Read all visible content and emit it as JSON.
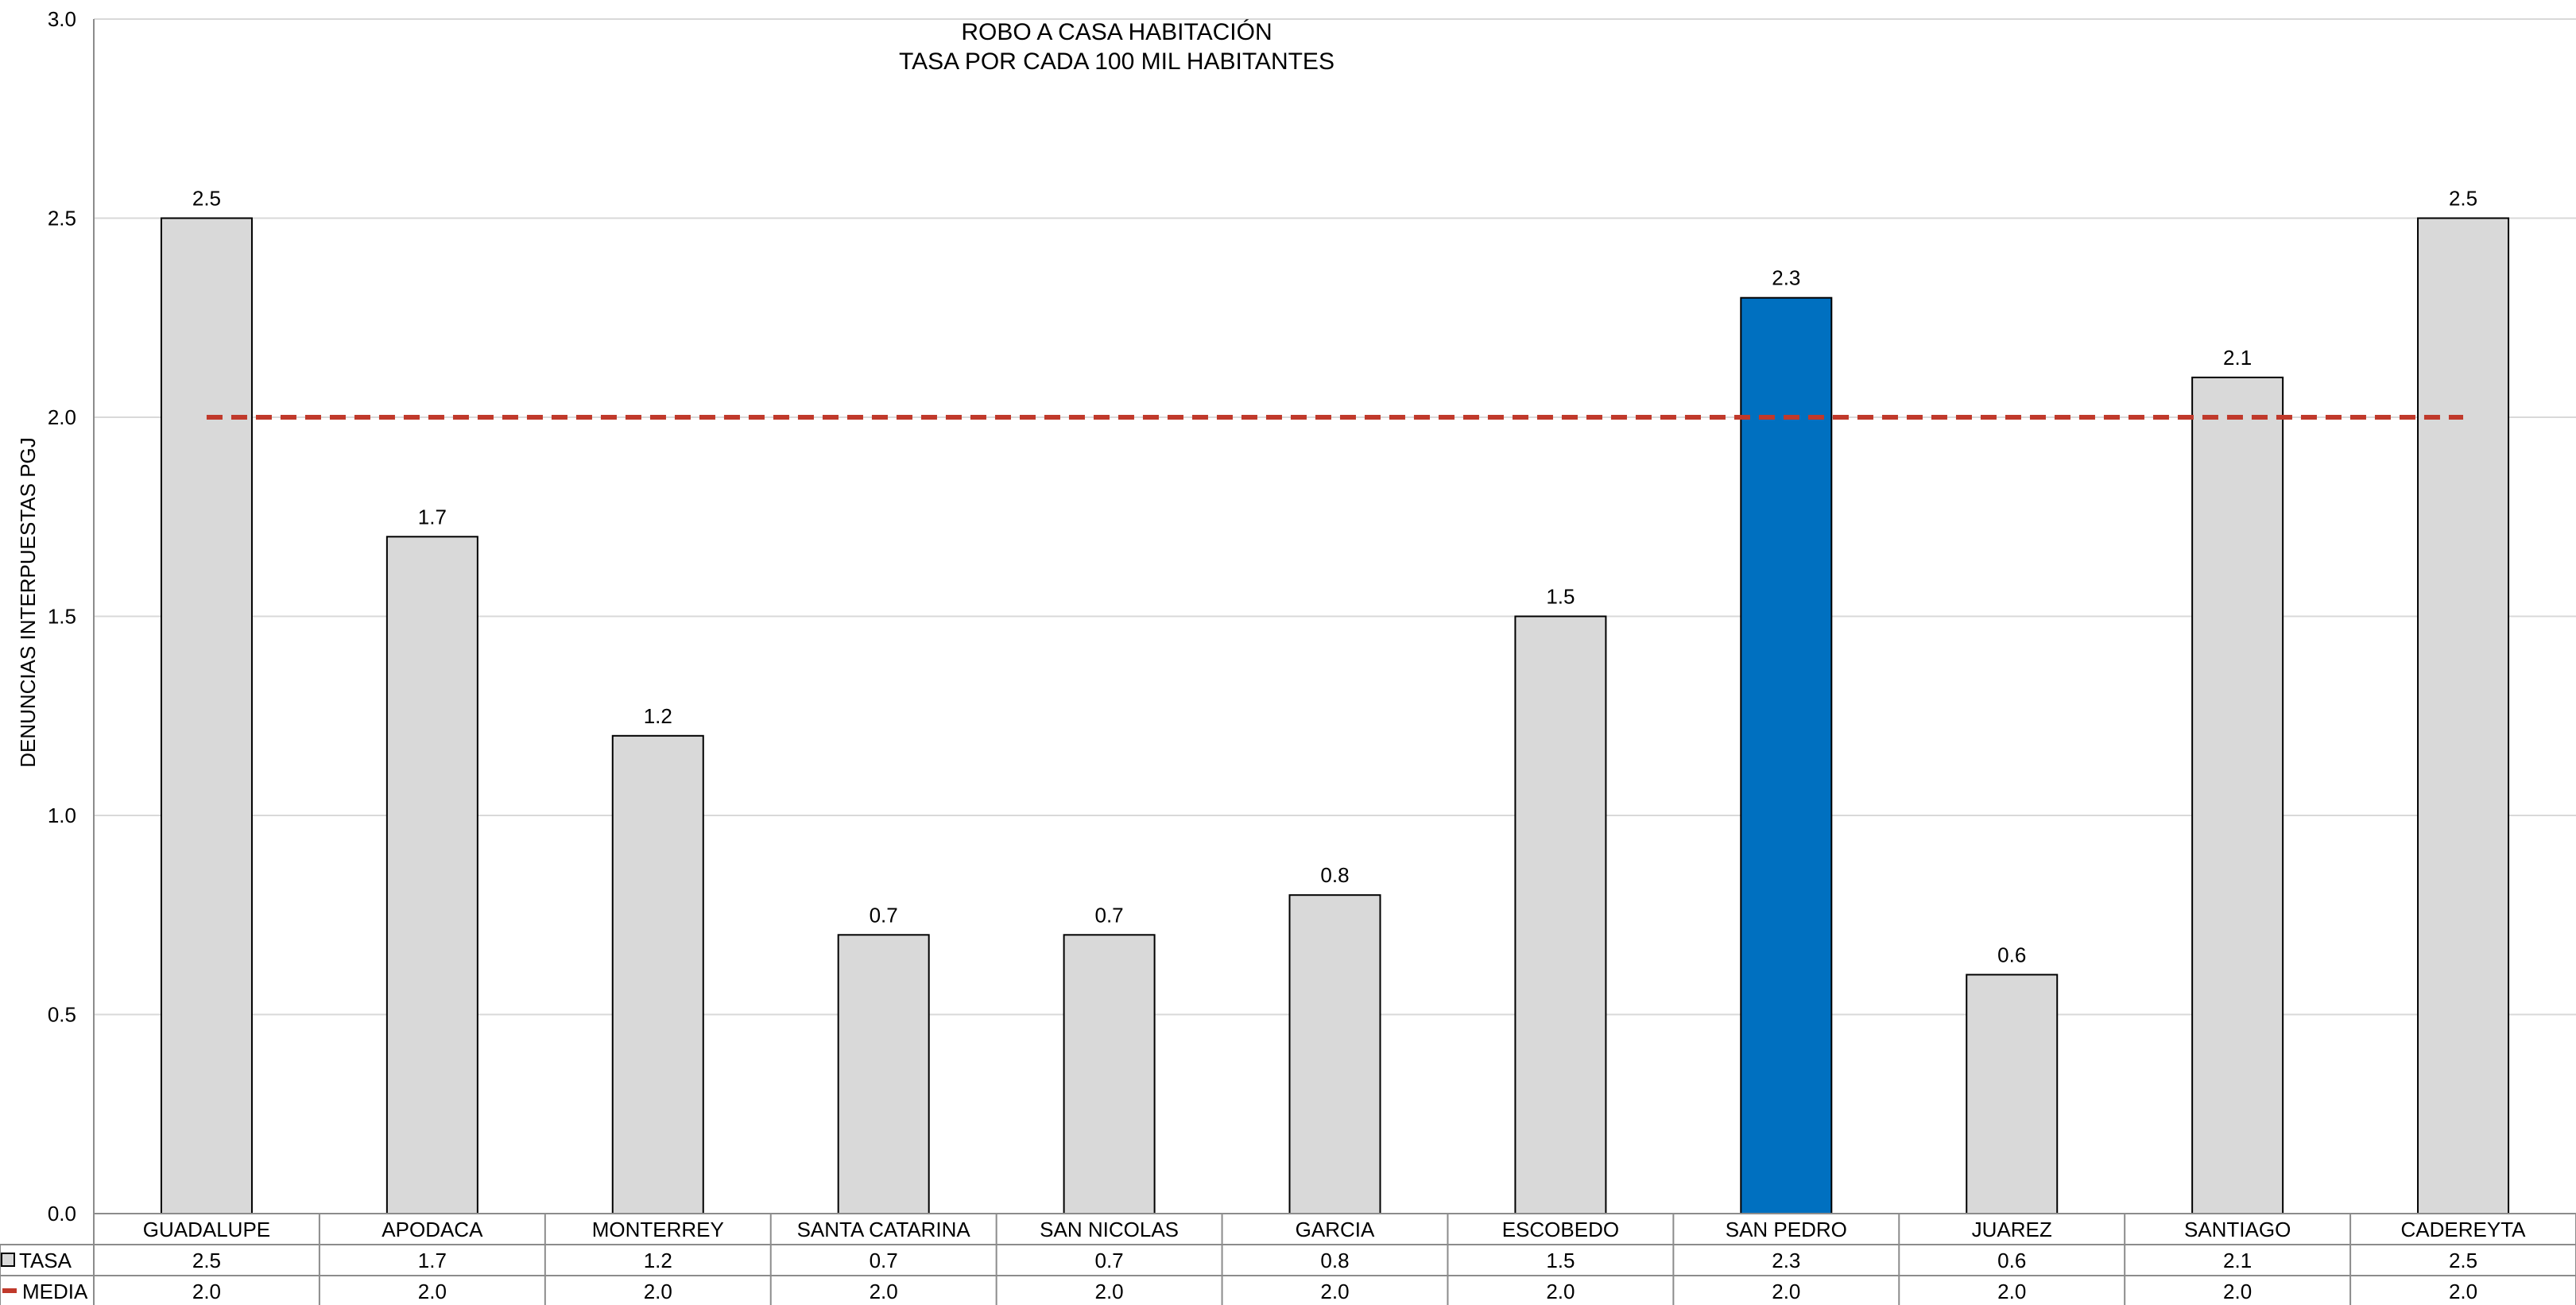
{
  "chart_data": {
    "type": "bar",
    "title": "ROBO A  CASA HABITACIÓN",
    "subtitle": "TASA POR CADA 100 MIL HABITANTES",
    "xlabel": "",
    "ylabel": "DENUNCIAS INTERPUESTAS PGJ",
    "ylim": [
      0,
      3.0
    ],
    "yticks": [
      "0.0",
      "0.5",
      "1.0",
      "1.5",
      "2.0",
      "2.5",
      "3.0"
    ],
    "grid": true,
    "categories": [
      "GUADALUPE",
      "APODACA",
      "MONTERREY",
      "SANTA CATARINA",
      "SAN NICOLAS",
      "GARCIA",
      "ESCOBEDO",
      "SAN PEDRO",
      "JUAREZ",
      "SANTIAGO",
      "CADEREYTA"
    ],
    "series": [
      {
        "name": "TASA",
        "kind": "bar",
        "values": [
          2.5,
          1.7,
          1.2,
          0.7,
          0.7,
          0.8,
          1.5,
          2.3,
          0.6,
          2.1,
          2.5
        ],
        "labels": [
          "2.5",
          "1.7",
          "1.2",
          "0.7",
          "0.7",
          "0.8",
          "1.5",
          "2.3",
          "0.6",
          "2.1",
          "2.5"
        ],
        "color": "#d9d9d9",
        "highlight_category": "SAN PEDRO",
        "highlight_color": "#0070c0"
      },
      {
        "name": "MEDIA",
        "kind": "dashed-line",
        "values": [
          2.0,
          2.0,
          2.0,
          2.0,
          2.0,
          2.0,
          2.0,
          2.0,
          2.0,
          2.0,
          2.0
        ],
        "labels": [
          "2.0",
          "2.0",
          "2.0",
          "2.0",
          "2.0",
          "2.0",
          "2.0",
          "2.0",
          "2.0",
          "2.0",
          "2.0"
        ],
        "color": "#c0392b"
      }
    ],
    "legend": "data-table"
  }
}
